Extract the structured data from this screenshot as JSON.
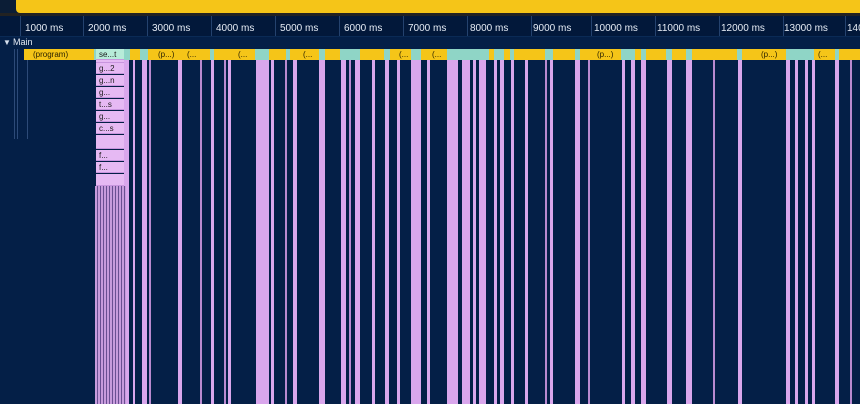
{
  "track": {
    "toggle_icon": "triangle-down",
    "name": "Main"
  },
  "ruler": {
    "ticks": [
      "1000 ms",
      "2000 ms",
      "3000 ms",
      "4000 ms",
      "5000 ms",
      "6000 ms",
      "7000 ms",
      "8000 ms",
      "9000 ms",
      "10000 ms",
      "11000 ms",
      "12000 ms",
      "13000 ms",
      "140"
    ]
  },
  "program_row": {
    "program": "(program)",
    "se_t": "se...t",
    "p1": "(p...)",
    "dots1": "(...",
    "dots2": "(...",
    "dots3": "(...",
    "dots4": "(...",
    "dots5": "(...",
    "p2": "(p...)",
    "p3": "(p...)",
    "dots6": "(..."
  },
  "stack": [
    "g...2",
    "g...n",
    "g...",
    "t...s",
    "g...",
    "c...s",
    "",
    "f...",
    "f..."
  ],
  "colors": {
    "background": "#041f47",
    "program": "#f5c518",
    "function": "#d9a6ec",
    "idle_gap": "#8fd5c6"
  }
}
